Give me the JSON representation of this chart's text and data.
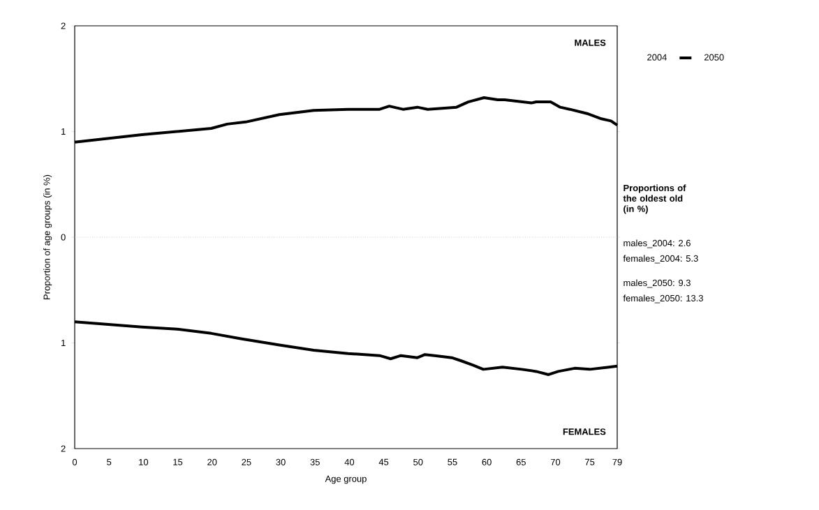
{
  "chart_data": {
    "type": "line",
    "xlabel": "Age group",
    "ylabel": "Proportion of age groups (in %)",
    "xlim": [
      0,
      79
    ],
    "ylim": [
      -2,
      2
    ],
    "xticks": [
      0,
      5,
      10,
      15,
      20,
      25,
      30,
      35,
      40,
      45,
      50,
      55,
      60,
      65,
      70,
      75,
      79
    ],
    "yticks": [
      {
        "value": -2,
        "label": "2"
      },
      {
        "value": -1,
        "label": "1"
      },
      0,
      1,
      2
    ],
    "legend": "right",
    "line_style": "solid",
    "marker": "none",
    "ref_lines": [
      {
        "axis": "y",
        "value": 0,
        "color": "#bbbbbb",
        "line_style": "dotted"
      }
    ],
    "series": [
      {
        "name": "2004",
        "values": [
          null
        ]
      },
      {
        "name": "2050",
        "color": "#000000",
        "x": [
          0,
          9.8,
          19.9,
          22.2,
          24.9,
          29.8,
          34.8,
          39.8,
          44.4,
          45.8,
          47.8,
          49.9,
          51.4,
          55.6,
          57.3,
          59.6,
          61.6,
          62.6,
          66.5,
          67.2,
          69.3,
          70.7,
          72.1,
          74.6,
          76.7,
          78.1,
          79
        ],
        "values": [
          0.9,
          0.97,
          1.03,
          1.07,
          1.09,
          1.16,
          1.2,
          1.21,
          1.21,
          1.24,
          1.21,
          1.23,
          1.21,
          1.23,
          1.28,
          1.32,
          1.3,
          1.3,
          1.27,
          1.28,
          1.28,
          1.23,
          1.21,
          1.17,
          1.12,
          1.1,
          1.06
        ]
      },
      {
        "color": "#000000",
        "x": [
          0,
          9.8,
          14.9,
          19.9,
          24.2,
          29.8,
          34.8,
          39.8,
          44.4,
          46,
          47.5,
          49.9,
          51,
          52.4,
          54.9,
          56.3,
          58,
          59.5,
          62.3,
          65.1,
          67.2,
          69,
          70.4,
          72.8,
          75,
          77.8,
          79
        ],
        "values": [
          -0.8,
          -0.85,
          -0.87,
          -0.91,
          -0.96,
          -1.02,
          -1.07,
          -1.1,
          -1.12,
          -1.15,
          -1.12,
          -1.14,
          -1.11,
          -1.12,
          -1.14,
          -1.17,
          -1.21,
          -1.25,
          -1.23,
          -1.25,
          -1.27,
          -1.3,
          -1.27,
          -1.24,
          -1.25,
          -1.23,
          -1.22
        ]
      }
    ],
    "annotations": [
      "MALES",
      "FEMALES",
      "Proportions of the oldest old (in %)",
      "males_2004: 2.6",
      "females_2004: 5.3",
      "males_2050: 9.3",
      "females_2050: 13.3"
    ]
  }
}
